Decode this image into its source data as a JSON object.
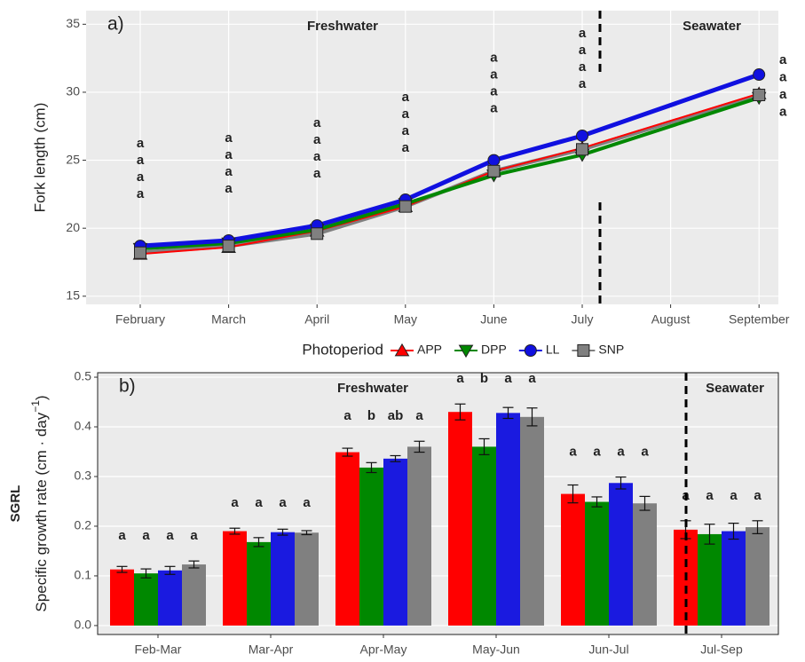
{
  "chart_data": [
    {
      "type": "line",
      "panel_label": "a)",
      "annotations": [
        "Freshwater",
        "Seawater"
      ],
      "ylabel": "Fork length (cm)",
      "categories": [
        "February",
        "March",
        "April",
        "May",
        "June",
        "July",
        "August",
        "September"
      ],
      "ylim": [
        14.4,
        36
      ],
      "yticks": [
        15,
        20,
        25,
        30,
        35
      ],
      "grid": true,
      "legend": {
        "title": "Photoperiod",
        "position": "bottom"
      },
      "series": [
        {
          "name": "APP",
          "color": "#ff0000",
          "marker": "triangle-up",
          "line_width": 2,
          "x": [
            "February",
            "March",
            "April",
            "May",
            "June",
            "July",
            "September"
          ],
          "values": [
            18.1,
            18.6,
            19.8,
            21.6,
            24.2,
            25.9,
            29.9
          ],
          "letters": [
            "a",
            "a",
            "a",
            "a",
            "a",
            "a",
            "a"
          ]
        },
        {
          "name": "DPP",
          "color": "#008800",
          "marker": "triangle-down",
          "line_width": 4,
          "x": [
            "February",
            "March",
            "April",
            "May",
            "June",
            "July",
            "September"
          ],
          "values": [
            18.5,
            18.9,
            19.9,
            21.8,
            23.9,
            25.4,
            29.6
          ],
          "letters": [
            "a",
            "a",
            "a",
            "a",
            "a",
            "a",
            "a"
          ]
        },
        {
          "name": "LL",
          "color": "#1010e0",
          "marker": "circle",
          "line_width": 5,
          "x": [
            "February",
            "March",
            "April",
            "May",
            "June",
            "July",
            "September"
          ],
          "values": [
            18.7,
            19.1,
            20.2,
            22.1,
            25.0,
            26.8,
            31.3
          ],
          "letters": [
            "a",
            "a",
            "a",
            "a",
            "a",
            "a",
            "a"
          ]
        },
        {
          "name": "SNP",
          "color": "#808080",
          "marker": "square",
          "line_width": 4.5,
          "x": [
            "February",
            "March",
            "April",
            "May",
            "June",
            "July",
            "September"
          ],
          "values": [
            18.2,
            18.7,
            19.6,
            21.6,
            24.2,
            25.8,
            29.8
          ],
          "letters": [
            "a",
            "a",
            "a",
            "a",
            "a",
            "a",
            "a"
          ]
        }
      ]
    },
    {
      "type": "bar",
      "panel_label": "b)",
      "annotations": [
        "Freshwater",
        "Seawater"
      ],
      "ylabel_title": "SGRL",
      "ylabel": [
        "Specific growth rate (cm · day",
        "−1",
        ")"
      ],
      "categories": [
        "Feb-Mar",
        "Mar-Apr",
        "Apr-May",
        "May-Jun",
        "Jun-Jul",
        "Jul-Sep"
      ],
      "ylim": [
        -0.018,
        0.509
      ],
      "yticks": [
        {
          "value": 0,
          "label": "0.0"
        },
        0.1,
        0.2,
        0.3,
        0.4,
        0.5
      ],
      "grid": true,
      "series": [
        {
          "name": "APP",
          "color": "#ff0000",
          "values": [
            0.113,
            0.19,
            0.349,
            0.43,
            0.265,
            0.193
          ],
          "errors": [
            0.006,
            0.006,
            0.008,
            0.016,
            0.018,
            0.018
          ],
          "letters": [
            "a",
            "a",
            "a",
            "a",
            "a",
            "a"
          ]
        },
        {
          "name": "DPP",
          "color": "#008800",
          "values": [
            0.105,
            0.168,
            0.318,
            0.36,
            0.249,
            0.184
          ],
          "errors": [
            0.009,
            0.009,
            0.01,
            0.016,
            0.01,
            0.02
          ],
          "letters": [
            "a",
            "a",
            "b",
            "b",
            "a",
            "a"
          ]
        },
        {
          "name": "LL",
          "color": "#1a1ae0",
          "values": [
            0.111,
            0.188,
            0.336,
            0.428,
            0.287,
            0.19
          ],
          "errors": [
            0.008,
            0.006,
            0.006,
            0.011,
            0.012,
            0.016
          ],
          "letters": [
            "a",
            "a",
            "ab",
            "a",
            "a",
            "a"
          ]
        },
        {
          "name": "SNP",
          "color": "#808080",
          "values": [
            0.123,
            0.187,
            0.36,
            0.42,
            0.246,
            0.198
          ],
          "errors": [
            0.007,
            0.004,
            0.011,
            0.018,
            0.014,
            0.013
          ],
          "letters": [
            "a",
            "a",
            "a",
            "a",
            "a",
            "a"
          ]
        }
      ]
    }
  ]
}
